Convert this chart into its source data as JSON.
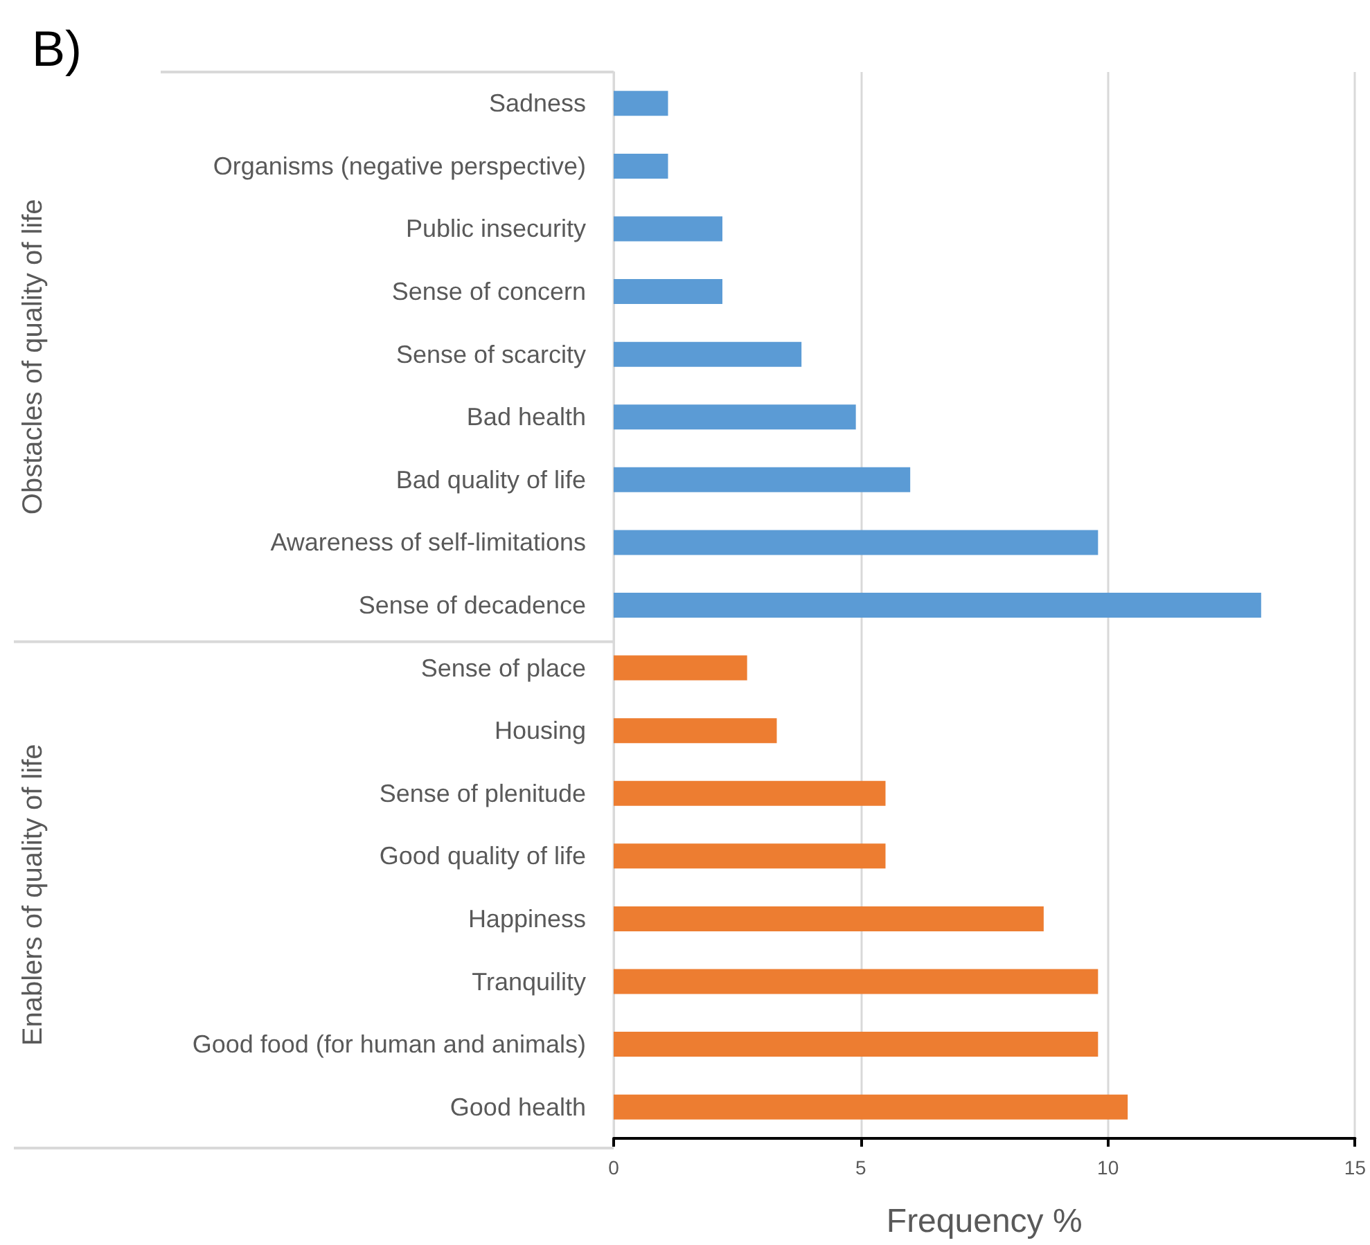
{
  "chart_data": {
    "type": "bar",
    "orientation": "horizontal",
    "title": "B)",
    "xlabel": "Frequency %",
    "categories": [
      "Sadness",
      "Organisms (negative perspective)",
      "Public insecurity",
      "Sense of concern",
      "Sense of scarcity",
      "Bad health",
      "Bad quality of life",
      "Awareness of self-limitations",
      "Sense of decadence",
      "Sense of place",
      "Housing",
      "Sense of plenitude",
      "Good quality of life",
      "Happiness",
      "Tranquility",
      "Good food (for human and animals)",
      "Good health"
    ],
    "series": [
      {
        "color": "#5b9bd5",
        "values": [
          1.1,
          1.1,
          2.2,
          2.2,
          3.8,
          4.9,
          6.0,
          9.8,
          13.1,
          null,
          null,
          null,
          null,
          null,
          null,
          null,
          null
        ]
      },
      {
        "color": "#ed7d31",
        "values": [
          null,
          null,
          null,
          null,
          null,
          null,
          null,
          null,
          null,
          2.7,
          3.3,
          5.5,
          5.5,
          8.7,
          9.8,
          9.8,
          10.4
        ]
      }
    ],
    "annotations": [
      "Obstacles of quality of life",
      "Enablers of quality of life"
    ],
    "xlim": [
      0,
      15
    ],
    "xticks": [
      0,
      5,
      10,
      15
    ],
    "grid": "x"
  }
}
